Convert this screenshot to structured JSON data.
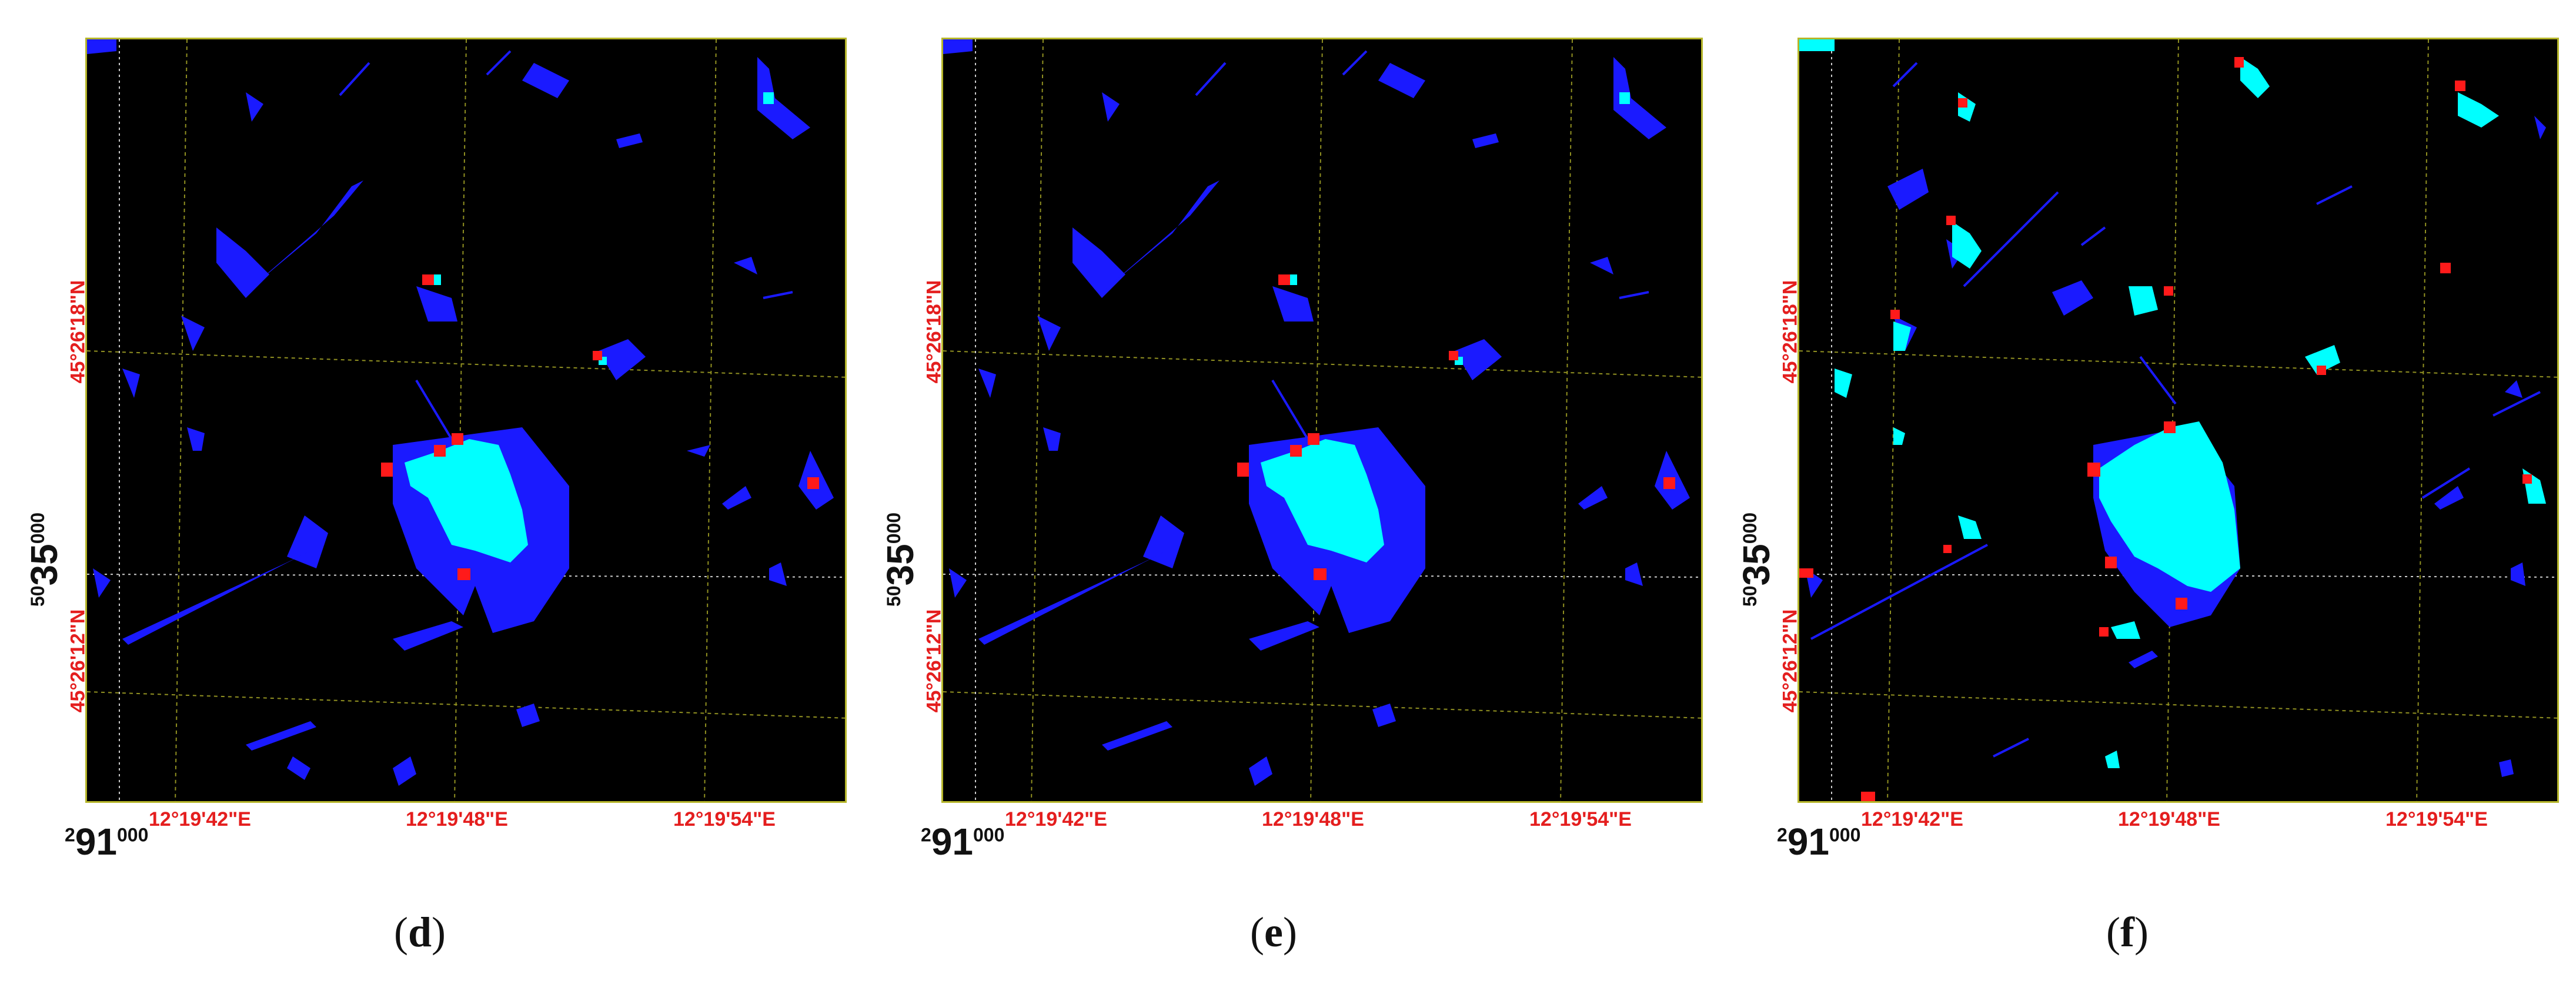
{
  "panels": [
    {
      "caption_open": "(",
      "caption_letter": "d",
      "caption_close": ")",
      "lat_labels": [
        "45°26'18\"N",
        "45°26'12\"N"
      ],
      "lon_labels": [
        "12°19'42\"E",
        "12°19'48\"E",
        "12°19'54\"E"
      ],
      "northing": {
        "sup": "50",
        "main": "35",
        "sub": "000"
      },
      "easting": {
        "sup": "2",
        "main": "91",
        "sub": "000"
      }
    },
    {
      "caption_open": "(",
      "caption_letter": "e",
      "caption_close": ")",
      "lat_labels": [
        "45°26'18\"N",
        "45°26'12\"N"
      ],
      "lon_labels": [
        "12°19'42\"E",
        "12°19'48\"E",
        "12°19'54\"E"
      ],
      "northing": {
        "sup": "50",
        "main": "35",
        "sub": "000"
      },
      "easting": {
        "sup": "2",
        "main": "91",
        "sub": "000"
      }
    },
    {
      "caption_open": "(",
      "caption_letter": "f",
      "caption_close": ")",
      "lat_labels": [
        "45°26'18\"N",
        "45°26'12\"N"
      ],
      "lon_labels": [
        "12°19'42\"E",
        "12°19'48\"E",
        "12°19'54\"E"
      ],
      "northing": {
        "sup": "50",
        "main": "35",
        "sub": "000"
      },
      "easting": {
        "sup": "2",
        "main": "91",
        "sub": "000"
      }
    }
  ],
  "colors": {
    "background": "#000000",
    "blue": "#1a1aff",
    "cyan": "#00ffff",
    "red": "#ff1a1a",
    "grid": "#b5b52a",
    "label_red": "#e41e1e"
  }
}
